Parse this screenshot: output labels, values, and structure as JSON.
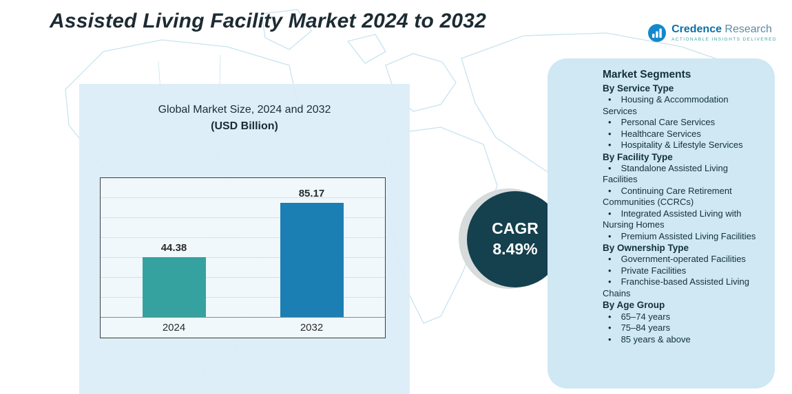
{
  "title": "Assisted Living Facility Market 2024 to 2032",
  "logo": {
    "brand_bold": "Credence",
    "brand_light": " Research",
    "tagline": "Actionable Insights Delivered"
  },
  "chart_data": {
    "type": "bar",
    "title": "Global Market Size, 2024 and 2032",
    "subtitle": "(USD Billion)",
    "categories": [
      "2024",
      "2032"
    ],
    "values": [
      44.38,
      85.17
    ],
    "bar_colors": [
      "#35a2a0",
      "#1b7fb4"
    ],
    "xlabel": "",
    "ylabel": "USD Billion",
    "ylim": [
      0,
      100
    ],
    "grid": true,
    "legend": "none"
  },
  "cagr": {
    "label": "CAGR",
    "value": "8.49%"
  },
  "segments": {
    "heading": "Market Segments",
    "groups": [
      {
        "title": "By Service Type",
        "items": [
          "Housing & Accommodation Services",
          "Personal Care Services",
          "Healthcare Services",
          "Hospitality & Lifestyle Services"
        ]
      },
      {
        "title": "By Facility Type",
        "items": [
          "Standalone Assisted Living Facilities",
          "Continuing Care Retirement Communities (CCRCs)",
          "Integrated Assisted Living with Nursing Homes",
          "Premium Assisted Living Facilities"
        ]
      },
      {
        "title": "By Ownership Type",
        "items": [
          "Government-operated Facilities",
          "Private Facilities",
          "Franchise-based Assisted Living Chains"
        ]
      },
      {
        "title": "By Age Group",
        "items": [
          "65–74 years",
          "75–84 years",
          "85 years & above"
        ]
      }
    ]
  },
  "colors": {
    "bar_2024": "#35a2a0",
    "bar_2032": "#1b7fb4",
    "cagr_circle": "#15404e",
    "left_panel_bg": "#dbedf7",
    "right_panel_bg": "#cfe8f3",
    "map_lines": "#c2e0ee",
    "title_text": "#1c2b33"
  }
}
